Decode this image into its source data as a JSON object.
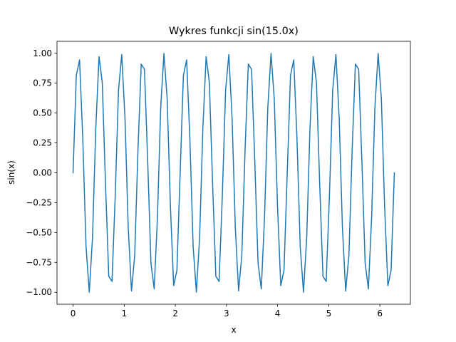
{
  "chart_data": {
    "type": "line",
    "title": "Wykres funkcji sin(15.0x)",
    "xlabel": "x",
    "ylabel": "sin(x)",
    "xlim": [
      -0.314,
      6.597
    ],
    "ylim": [
      -1.1,
      1.1
    ],
    "grid": false,
    "legend": "none",
    "x_ticks": [
      0,
      1,
      2,
      3,
      4,
      5,
      6
    ],
    "x_tick_labels": [
      "0",
      "1",
      "2",
      "3",
      "4",
      "5",
      "6"
    ],
    "y_ticks": [
      -1.0,
      -0.75,
      -0.5,
      -0.25,
      0.0,
      0.25,
      0.5,
      0.75,
      1.0
    ],
    "y_tick_labels": [
      "−1.00",
      "−0.75",
      "−0.50",
      "−0.25",
      "0.00",
      "0.25",
      "0.50",
      "0.75",
      "1.00"
    ],
    "line_color": "#1f77b4",
    "series": [
      {
        "function": "sin(15.0x)",
        "frequency": 15.0,
        "x_start": 0,
        "x_end": 6.2832,
        "num_points": 100
      }
    ]
  }
}
